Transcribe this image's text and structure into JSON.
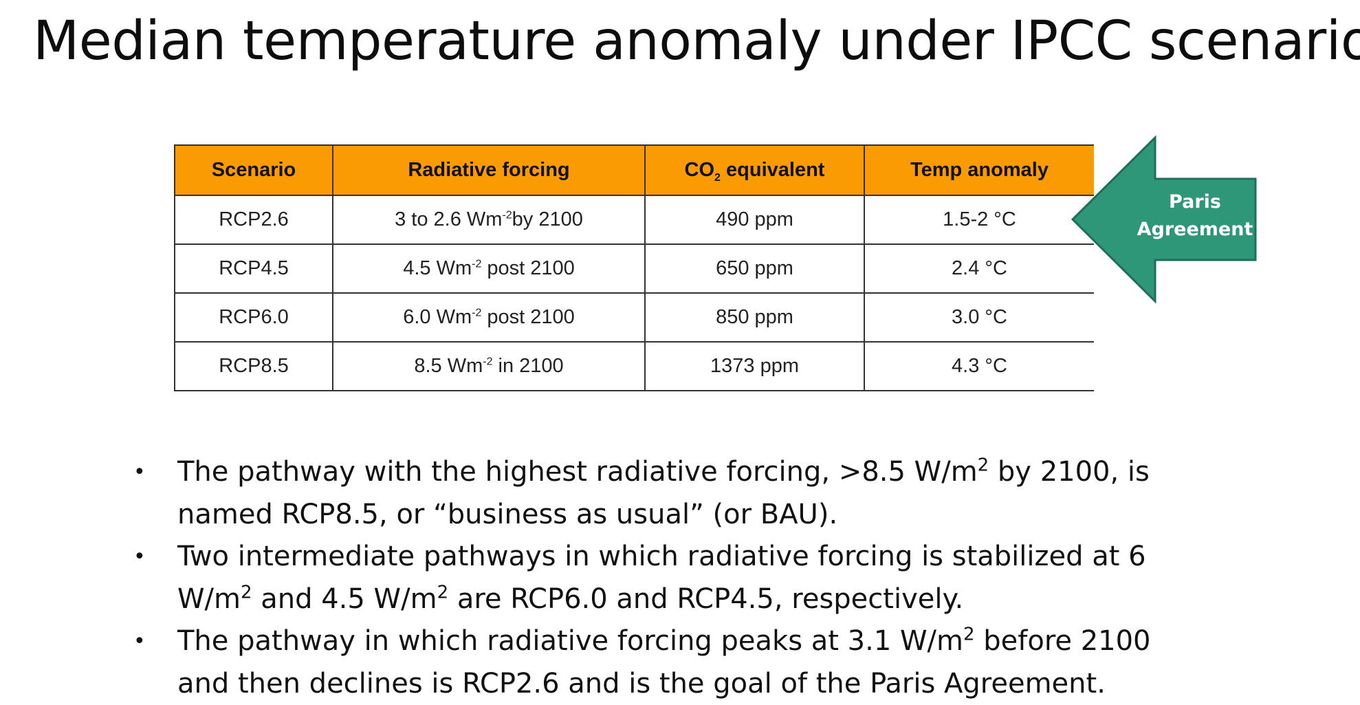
{
  "title": "Median temperature anomaly under IPCC scenarios",
  "table": {
    "headers": {
      "scenario": "Scenario",
      "forcing": "Radiative forcing",
      "co2_prefix": "CO",
      "co2_sub": "2",
      "co2_suffix": " equivalent",
      "temp": "Temp anomaly"
    },
    "rows": [
      {
        "scenario": "RCP2.6",
        "forcing_a": "3 to 2.6 Wm",
        "forcing_sup": "-2",
        "forcing_b": "by 2100",
        "co2": "490 ppm",
        "temp": "1.5-2 °C"
      },
      {
        "scenario": "RCP4.5",
        "forcing_a": "4.5 Wm",
        "forcing_sup": "-2",
        "forcing_b": " post  2100",
        "co2": "650 ppm",
        "temp": "2.4 °C"
      },
      {
        "scenario": "RCP6.0",
        "forcing_a": "6.0 Wm",
        "forcing_sup": "-2",
        "forcing_b": " post 2100",
        "co2": "850 ppm",
        "temp": "3.0 °C"
      },
      {
        "scenario": "RCP8.5",
        "forcing_a": "8.5 Wm",
        "forcing_sup": "-2",
        "forcing_b": " in 2100",
        "co2": "1373 ppm",
        "temp": "4.3 °C"
      }
    ]
  },
  "callout": {
    "line1": "Paris",
    "line2": "Agreement",
    "color": "#2e9778"
  },
  "header_color": "#fb9b03",
  "bullets": {
    "b1": {
      "a": "The pathway with the highest radiative forcing, >8.5 W/m",
      "sup": "2",
      "b": " by 2100, is named RCP8.5, or “business as usual” (or BAU)."
    },
    "b2": {
      "a": "Two intermediate pathways in which radiative forcing is stabilized at 6 W/m",
      "sup1": "2",
      "b": " and 4.5 W/m",
      "sup2": "2",
      "c": " are RCP6.0 and RCP4.5, respectively."
    },
    "b3": {
      "a": "The pathway in which radiative forcing peaks at 3.1 W/m",
      "sup": "2",
      "b": " before 2100 and then declines is RCP2.6 and is the goal of the Paris Agreement."
    },
    "marker": "•"
  }
}
